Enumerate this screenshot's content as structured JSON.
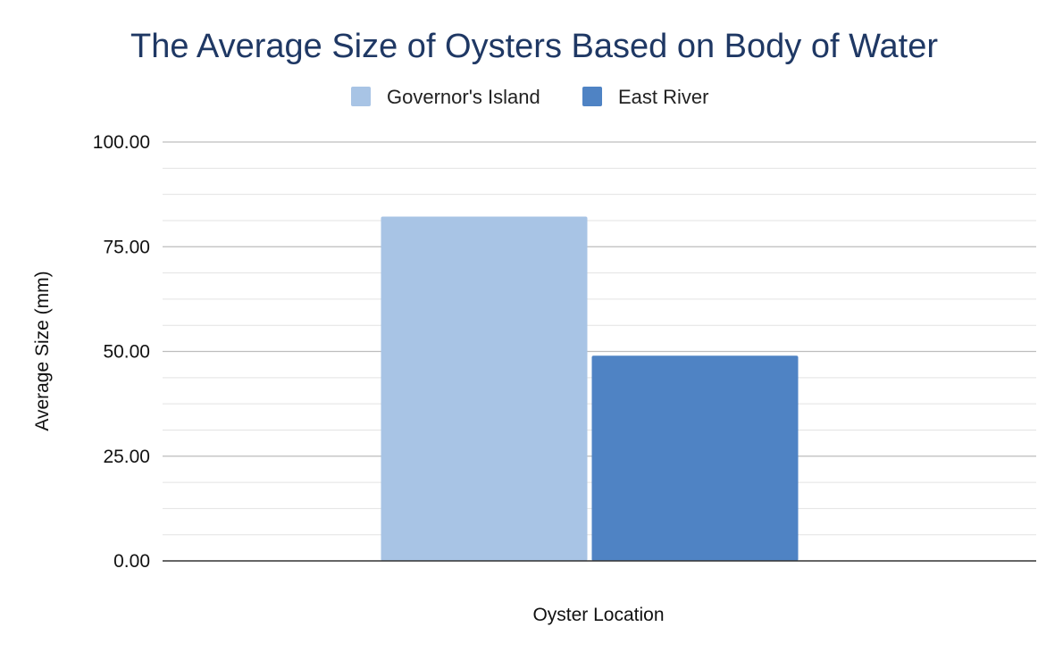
{
  "chart_data": {
    "type": "bar",
    "title": "The Average Size of Oysters Based on Body of Water",
    "xlabel": "Oyster Location",
    "ylabel": "Average Size (mm)",
    "categories": [
      ""
    ],
    "series": [
      {
        "name": "Governor's Island",
        "color": "#a8c4e5",
        "values": [
          82.2
        ]
      },
      {
        "name": "East River",
        "color": "#4f83c4",
        "values": [
          49.0
        ]
      }
    ],
    "ylim": [
      0,
      100
    ],
    "yticks": [
      0,
      25,
      50,
      75,
      100
    ],
    "ytick_labels": [
      "0.00",
      "25.00",
      "50.00",
      "75.00",
      "100.00"
    ],
    "minor_gridlines_per_major": 3,
    "grid": true,
    "legend_position": "top-center"
  },
  "colors": {
    "title": "#1f3864",
    "gridline": "#cccccc",
    "baseline": "#333333"
  }
}
